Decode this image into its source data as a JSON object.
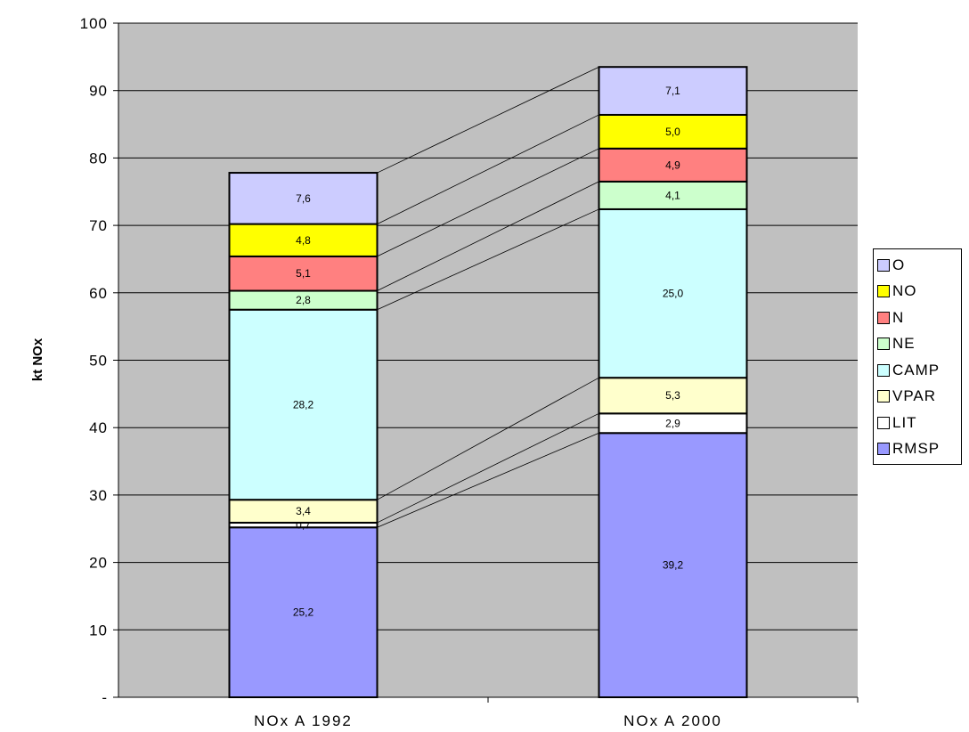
{
  "chart_data": {
    "type": "bar",
    "stacked": true,
    "categories": [
      "NOx A 1992",
      "NOx A 2000"
    ],
    "ylabel": "kt NOx",
    "ylim": [
      0,
      100
    ],
    "yticks": [
      0,
      10,
      20,
      30,
      40,
      50,
      60,
      70,
      80,
      90,
      100
    ],
    "ytick_labels": [
      "-",
      "10",
      "20",
      "30",
      "40",
      "50",
      "60",
      "70",
      "80",
      "90",
      "100"
    ],
    "grid": true,
    "plot_background": "#c0c0c0",
    "legend_position": "right",
    "series": [
      {
        "name": "RMSP",
        "color": "#9999ff",
        "values": [
          25.2,
          39.2
        ],
        "labels": [
          "25,2",
          "39,2"
        ]
      },
      {
        "name": "LIT",
        "color": "#ffffff",
        "values": [
          0.7,
          2.9
        ],
        "labels": [
          "0,7",
          "2,9"
        ]
      },
      {
        "name": "VPAR",
        "color": "#ffffcc",
        "values": [
          3.4,
          5.3
        ],
        "labels": [
          "3,4",
          "5,3"
        ]
      },
      {
        "name": "CAMP",
        "color": "#ccffff",
        "values": [
          28.2,
          25.0
        ],
        "labels": [
          "28,2",
          "25,0"
        ]
      },
      {
        "name": "NE",
        "color": "#ccffcc",
        "values": [
          2.8,
          4.1
        ],
        "labels": [
          "2,8",
          "4,1"
        ]
      },
      {
        "name": "N",
        "color": "#ff8080",
        "values": [
          5.1,
          4.9
        ],
        "labels": [
          "5,1",
          "4,9"
        ]
      },
      {
        "name": "NO",
        "color": "#ffff00",
        "values": [
          4.8,
          5.0
        ],
        "labels": [
          "4,8",
          "5,0"
        ]
      },
      {
        "name": "O",
        "color": "#ccccff",
        "values": [
          7.6,
          7.1
        ],
        "labels": [
          "7,6",
          "7,1"
        ]
      }
    ]
  }
}
